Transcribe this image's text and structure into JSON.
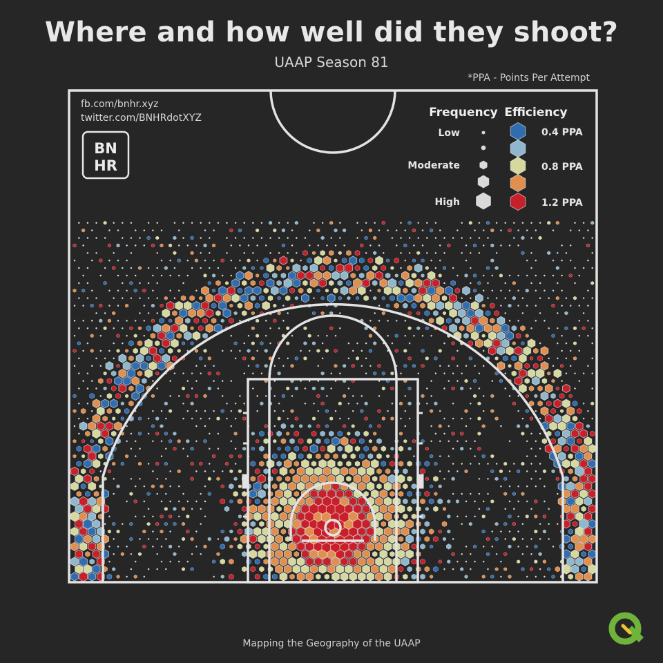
{
  "header": {
    "title": "Where and how well did they shoot?",
    "subtitle": "UAAP Season 81",
    "note": "*PPA - Points Per Attempt"
  },
  "credits": {
    "facebook": "fb.com/bnhr.xyz",
    "twitter": "twitter.com/BNHRdotXYZ",
    "logo_line1": "BN",
    "logo_line2": "HR"
  },
  "legend": {
    "frequency_title": "Frequency",
    "efficiency_title": "Efficiency",
    "frequency_labels": [
      "Low",
      "Moderate",
      "High"
    ],
    "efficiency_labels": [
      "0.4 PPA",
      "0.8 PPA",
      "1.2 PPA"
    ]
  },
  "footer": {
    "text": "Mapping the Geography of the UAAP"
  },
  "colors": {
    "background": "#262626",
    "court_lines": "#e3e3e3",
    "ppa_0_4": "#2f6db0",
    "ppa_0_6": "#8fb8cf",
    "ppa_0_8": "#d6d99e",
    "ppa_1_0": "#e08f4f",
    "ppa_1_2": "#c8202a",
    "low_frequency": "#d9d9d9"
  },
  "icons": {
    "qgis_logo": "qgis-logo-icon"
  },
  "chart_data": {
    "type": "heatmap",
    "title": "Where and how well did they shoot?",
    "subtitle": "UAAP Season 81",
    "encoding": {
      "size": "Frequency",
      "color": "Efficiency (PPA)"
    },
    "frequency_scale": [
      "Low",
      "Moderate",
      "High"
    ],
    "efficiency_scale": [
      0.4,
      0.6,
      0.8,
      1.0,
      1.2
    ],
    "efficiency_tick_labels": [
      "0.4 PPA",
      "0.8 PPA",
      "1.2 PPA"
    ],
    "legend_position": "top-right"
  }
}
